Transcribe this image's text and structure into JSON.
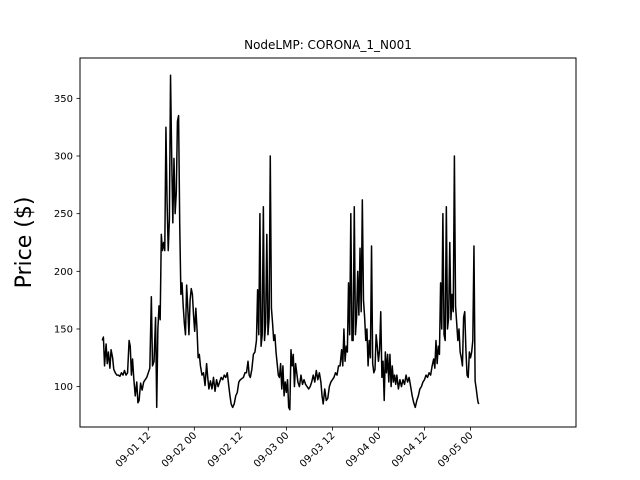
{
  "chart_data": {
    "type": "line",
    "title": "NodeLMP: CORONA_1_N001",
    "xlabel": "",
    "ylabel": "Price ($)",
    "x_start": "2024-09-01 00:00",
    "x_ticks": [
      "09-01 12",
      "09-02 00",
      "09-02 12",
      "09-03 00",
      "09-03 12",
      "09-04 00",
      "09-04 12",
      "09-05 00"
    ],
    "xlim_hours": [
      -5.8,
      123.5
    ],
    "ylim": [
      65,
      385
    ],
    "y_ticks": [
      100,
      150,
      200,
      250,
      300,
      350
    ],
    "grid": false,
    "line_color": "#000000",
    "series": [
      {
        "name": "",
        "points": [
          [
            0.0,
            140
          ],
          [
            0.3,
            143
          ],
          [
            0.6,
            118
          ],
          [
            1.0,
            137
          ],
          [
            1.3,
            120
          ],
          [
            1.6,
            130
          ],
          [
            2.0,
            116
          ],
          [
            2.3,
            132
          ],
          [
            2.7,
            125
          ],
          [
            3.0,
            115
          ],
          [
            3.4,
            112
          ],
          [
            3.8,
            110
          ],
          [
            4.2,
            110
          ],
          [
            4.6,
            109
          ],
          [
            5.0,
            112
          ],
          [
            5.4,
            110
          ],
          [
            5.8,
            114
          ],
          [
            6.2,
            110
          ],
          [
            6.6,
            112
          ],
          [
            7.0,
            140
          ],
          [
            7.3,
            135
          ],
          [
            7.6,
            110
          ],
          [
            7.9,
            124
          ],
          [
            8.2,
            108
          ],
          [
            8.6,
            92
          ],
          [
            9.0,
            104
          ],
          [
            9.3,
            86
          ],
          [
            9.6,
            88
          ],
          [
            10.0,
            103
          ],
          [
            10.4,
            97
          ],
          [
            10.8,
            104
          ],
          [
            11.2,
            106
          ],
          [
            11.6,
            108
          ],
          [
            12.0,
            112
          ],
          [
            12.4,
            116
          ],
          [
            12.8,
            178
          ],
          [
            13.1,
            118
          ],
          [
            13.5,
            122
          ],
          [
            13.9,
            160
          ],
          [
            14.2,
            82
          ],
          [
            14.5,
            150
          ],
          [
            14.8,
            170
          ],
          [
            15.1,
            158
          ],
          [
            15.4,
            232
          ],
          [
            15.7,
            218
          ],
          [
            16.0,
            225
          ],
          [
            16.3,
            218
          ],
          [
            16.6,
            325
          ],
          [
            16.9,
            260
          ],
          [
            17.2,
            218
          ],
          [
            17.5,
            245
          ],
          [
            17.8,
            370
          ],
          [
            18.1,
            300
          ],
          [
            18.4,
            242
          ],
          [
            18.7,
            298
          ],
          [
            19.0,
            250
          ],
          [
            19.3,
            268
          ],
          [
            19.6,
            330
          ],
          [
            19.9,
            335
          ],
          [
            20.2,
            240
          ],
          [
            20.5,
            180
          ],
          [
            20.8,
            190
          ],
          [
            21.1,
            170
          ],
          [
            21.4,
            155
          ],
          [
            21.7,
            145
          ],
          [
            22.0,
            188
          ],
          [
            22.3,
            168
          ],
          [
            22.6,
            145
          ],
          [
            22.9,
            175
          ],
          [
            23.2,
            185
          ],
          [
            23.5,
            180
          ],
          [
            23.8,
            162
          ],
          [
            24.1,
            148
          ],
          [
            24.4,
            168
          ],
          [
            24.7,
            150
          ],
          [
            25.0,
            125
          ],
          [
            25.3,
            128
          ],
          [
            25.6,
            118
          ],
          [
            26.0,
            110
          ],
          [
            26.4,
            112
          ],
          [
            26.8,
            101
          ],
          [
            27.2,
            120
          ],
          [
            27.5,
            108
          ],
          [
            27.8,
            98
          ],
          [
            28.2,
            105
          ],
          [
            28.6,
            98
          ],
          [
            29.0,
            108
          ],
          [
            29.4,
            96
          ],
          [
            29.8,
            106
          ],
          [
            30.2,
            100
          ],
          [
            30.6,
            104
          ],
          [
            31.0,
            108
          ],
          [
            31.4,
            106
          ],
          [
            31.8,
            110
          ],
          [
            32.2,
            108
          ],
          [
            32.6,
            112
          ],
          [
            33.0,
            100
          ],
          [
            33.3,
            92
          ],
          [
            33.6,
            85
          ],
          [
            34.0,
            82
          ],
          [
            34.4,
            85
          ],
          [
            34.8,
            92
          ],
          [
            35.2,
            95
          ],
          [
            35.6,
            104
          ],
          [
            36.0,
            106
          ],
          [
            36.4,
            107
          ],
          [
            36.8,
            108
          ],
          [
            37.2,
            112
          ],
          [
            37.6,
            112
          ],
          [
            38.0,
            122
          ],
          [
            38.3,
            110
          ],
          [
            38.6,
            108
          ],
          [
            39.0,
            115
          ],
          [
            39.4,
            128
          ],
          [
            39.8,
            130
          ],
          [
            40.2,
            140
          ],
          [
            40.5,
            184
          ],
          [
            40.8,
            145
          ],
          [
            41.1,
            250
          ],
          [
            41.4,
            135
          ],
          [
            41.7,
            145
          ],
          [
            42.0,
            256
          ],
          [
            42.3,
            140
          ],
          [
            42.6,
            155
          ],
          [
            42.9,
            232
          ],
          [
            43.2,
            145
          ],
          [
            43.5,
            160
          ],
          [
            43.8,
            300
          ],
          [
            44.1,
            168
          ],
          [
            44.4,
            155
          ],
          [
            44.7,
            140
          ],
          [
            45.0,
            145
          ],
          [
            45.3,
            130
          ],
          [
            45.6,
            120
          ],
          [
            45.9,
            110
          ],
          [
            46.2,
            108
          ],
          [
            46.5,
            120
          ],
          [
            46.8,
            98
          ],
          [
            47.1,
            118
          ],
          [
            47.4,
            92
          ],
          [
            47.7,
            104
          ],
          [
            48.0,
            95
          ],
          [
            48.3,
            106
          ],
          [
            48.6,
            82
          ],
          [
            48.9,
            80
          ],
          [
            49.2,
            132
          ],
          [
            49.5,
            118
          ],
          [
            49.8,
            128
          ],
          [
            50.1,
            100
          ],
          [
            50.4,
            120
          ],
          [
            50.7,
            112
          ],
          [
            51.0,
            104
          ],
          [
            51.4,
            100
          ],
          [
            51.8,
            110
          ],
          [
            52.2,
            102
          ],
          [
            52.6,
            106
          ],
          [
            53.0,
            102
          ],
          [
            53.4,
            100
          ],
          [
            53.8,
            98
          ],
          [
            54.2,
            100
          ],
          [
            54.6,
            104
          ],
          [
            55.0,
            110
          ],
          [
            55.4,
            104
          ],
          [
            55.8,
            114
          ],
          [
            56.2,
            106
          ],
          [
            56.6,
            112
          ],
          [
            57.0,
            104
          ],
          [
            57.3,
            92
          ],
          [
            57.6,
            85
          ],
          [
            58.0,
            98
          ],
          [
            58.4,
            88
          ],
          [
            58.8,
            90
          ],
          [
            59.2,
            100
          ],
          [
            59.6,
            104
          ],
          [
            60.0,
            106
          ],
          [
            60.4,
            108
          ],
          [
            60.8,
            112
          ],
          [
            61.2,
            110
          ],
          [
            61.6,
            118
          ],
          [
            62.0,
            118
          ],
          [
            62.4,
            132
          ],
          [
            62.7,
            118
          ],
          [
            63.0,
            150
          ],
          [
            63.3,
            122
          ],
          [
            63.6,
            135
          ],
          [
            63.9,
            130
          ],
          [
            64.2,
            190
          ],
          [
            64.5,
            145
          ],
          [
            64.8,
            250
          ],
          [
            65.1,
            140
          ],
          [
            65.4,
            140
          ],
          [
            65.7,
            256
          ],
          [
            66.0,
            145
          ],
          [
            66.3,
            160
          ],
          [
            66.6,
            200
          ],
          [
            66.9,
            162
          ],
          [
            67.2,
            220
          ],
          [
            67.5,
            165
          ],
          [
            67.8,
            262
          ],
          [
            68.1,
            175
          ],
          [
            68.4,
            160
          ],
          [
            68.7,
            140
          ],
          [
            69.0,
            150
          ],
          [
            69.3,
            118
          ],
          [
            69.6,
            140
          ],
          [
            69.9,
            125
          ],
          [
            70.2,
            222
          ],
          [
            70.5,
            120
          ],
          [
            70.8,
            112
          ],
          [
            71.1,
            115
          ],
          [
            71.4,
            145
          ],
          [
            71.7,
            135
          ],
          [
            72.0,
            122
          ],
          [
            72.3,
            132
          ],
          [
            72.6,
            165
          ],
          [
            72.9,
            108
          ],
          [
            73.2,
            122
          ],
          [
            73.5,
            88
          ],
          [
            73.8,
            130
          ],
          [
            74.1,
            112
          ],
          [
            74.4,
            128
          ],
          [
            74.7,
            104
          ],
          [
            75.0,
            128
          ],
          [
            75.3,
            100
          ],
          [
            75.6,
            118
          ],
          [
            75.9,
            104
          ],
          [
            76.2,
            110
          ],
          [
            76.5,
            102
          ],
          [
            76.8,
            110
          ],
          [
            77.2,
            98
          ],
          [
            77.6,
            106
          ],
          [
            78.0,
            100
          ],
          [
            78.4,
            106
          ],
          [
            78.8,
            102
          ],
          [
            79.2,
            110
          ],
          [
            79.6,
            104
          ],
          [
            80.0,
            108
          ],
          [
            80.4,
            100
          ],
          [
            80.8,
            92
          ],
          [
            81.2,
            86
          ],
          [
            81.6,
            82
          ],
          [
            82.0,
            88
          ],
          [
            82.4,
            92
          ],
          [
            82.8,
            98
          ],
          [
            83.2,
            100
          ],
          [
            83.6,
            104
          ],
          [
            84.0,
            106
          ],
          [
            84.4,
            110
          ],
          [
            84.8,
            108
          ],
          [
            85.2,
            112
          ],
          [
            85.6,
            110
          ],
          [
            86.0,
            118
          ],
          [
            86.4,
            124
          ],
          [
            86.7,
            116
          ],
          [
            87.0,
            140
          ],
          [
            87.3,
            120
          ],
          [
            87.6,
            135
          ],
          [
            87.9,
            128
          ],
          [
            88.2,
            190
          ],
          [
            88.5,
            150
          ],
          [
            88.8,
            250
          ],
          [
            89.1,
            145
          ],
          [
            89.4,
            140
          ],
          [
            89.7,
            256
          ],
          [
            90.0,
            150
          ],
          [
            90.3,
            160
          ],
          [
            90.6,
            225
          ],
          [
            90.9,
            158
          ],
          [
            91.2,
            180
          ],
          [
            91.5,
            165
          ],
          [
            91.8,
            300
          ],
          [
            92.1,
            170
          ],
          [
            92.4,
            155
          ],
          [
            92.7,
            140
          ],
          [
            93.0,
            150
          ],
          [
            93.3,
            130
          ],
          [
            93.6,
            125
          ],
          [
            93.9,
            118
          ],
          [
            94.2,
            160
          ],
          [
            94.5,
            165
          ],
          [
            94.8,
            132
          ],
          [
            95.1,
            110
          ],
          [
            95.4,
            108
          ],
          [
            95.7,
            130
          ],
          [
            96.0,
            125
          ],
          [
            96.3,
            130
          ],
          [
            96.6,
            140
          ],
          [
            96.9,
            222
          ],
          [
            97.2,
            105
          ],
          [
            97.5,
            98
          ],
          [
            97.8,
            90
          ],
          [
            98.0,
            86
          ],
          [
            98.2,
            85
          ]
        ]
      }
    ]
  }
}
